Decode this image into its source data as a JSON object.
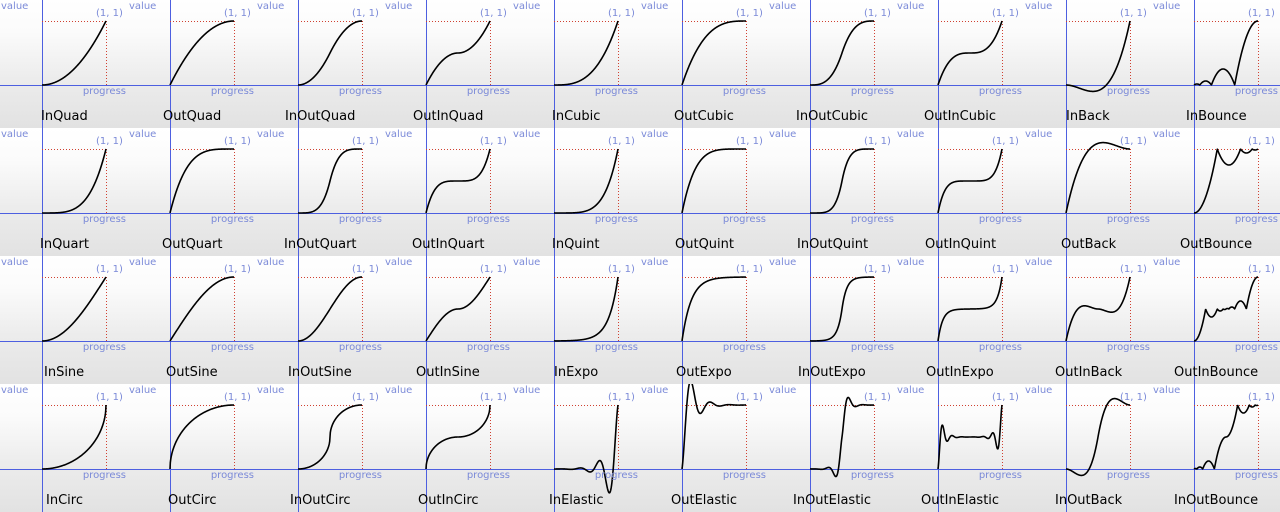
{
  "axis": {
    "value_label": "value",
    "progress_label": "progress",
    "corner_label": "(1, 1)"
  },
  "colors": {
    "axis": "#4d5fe0",
    "guide": "#d04030",
    "curve": "#000000",
    "label": "#7b8ad8"
  },
  "chart_data": {
    "type": "line",
    "description_axes": {
      "xlabel": "progress",
      "ylabel": "value"
    },
    "xlim": [
      0,
      1
    ],
    "grid": false,
    "columns": 10,
    "charts": [
      {
        "name": "InQuad"
      },
      {
        "name": "OutQuad"
      },
      {
        "name": "InOutQuad"
      },
      {
        "name": "OutInQuad"
      },
      {
        "name": "InCubic"
      },
      {
        "name": "OutCubic"
      },
      {
        "name": "InOutCubic"
      },
      {
        "name": "OutInCubic"
      },
      {
        "name": "InBack"
      },
      {
        "name": "InBounce"
      },
      {
        "name": "InQuart"
      },
      {
        "name": "OutQuart"
      },
      {
        "name": "InOutQuart"
      },
      {
        "name": "OutInQuart"
      },
      {
        "name": "InQuint"
      },
      {
        "name": "OutQuint"
      },
      {
        "name": "InOutQuint"
      },
      {
        "name": "OutInQuint"
      },
      {
        "name": "OutBack"
      },
      {
        "name": "OutBounce"
      },
      {
        "name": "InSine"
      },
      {
        "name": "OutSine"
      },
      {
        "name": "InOutSine"
      },
      {
        "name": "OutInSine"
      },
      {
        "name": "InExpo"
      },
      {
        "name": "OutExpo"
      },
      {
        "name": "InOutExpo"
      },
      {
        "name": "OutInExpo"
      },
      {
        "name": "OutInBack"
      },
      {
        "name": "OutInBounce"
      },
      {
        "name": "InCirc"
      },
      {
        "name": "OutCirc"
      },
      {
        "name": "InOutCirc"
      },
      {
        "name": "OutInCirc"
      },
      {
        "name": "InElastic"
      },
      {
        "name": "OutElastic"
      },
      {
        "name": "InOutElastic"
      },
      {
        "name": "OutInElastic"
      },
      {
        "name": "InOutBack"
      },
      {
        "name": "InOutBounce"
      }
    ]
  }
}
